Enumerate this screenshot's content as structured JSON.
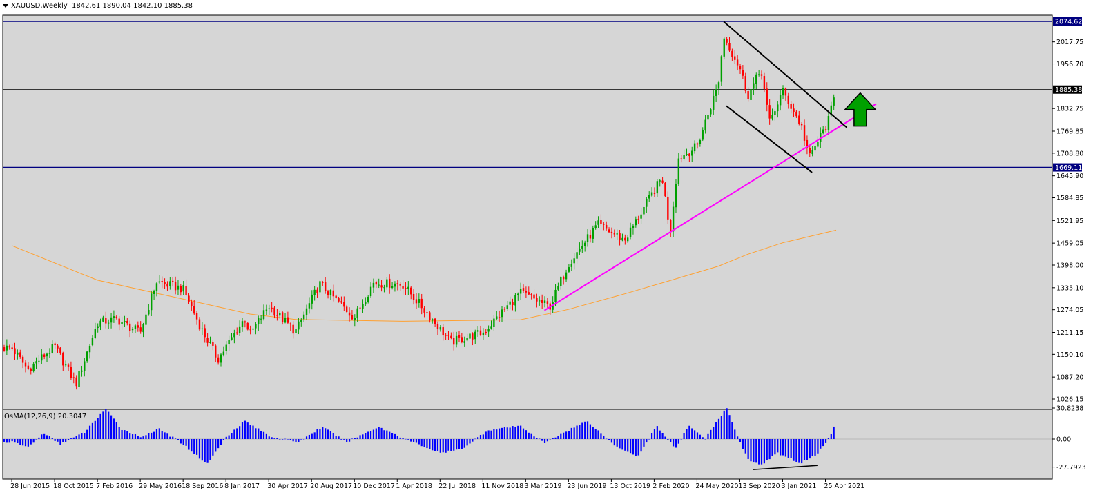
{
  "header": {
    "symbol": "XAUUSD,Weekly",
    "ohlc": "1842.61 1890.04 1842.10 1885.38"
  },
  "indicator": {
    "label": "OsMA(12,26,9) 20.3047",
    "ticks": [
      "30.8238",
      "0.00",
      "-27.7923"
    ]
  },
  "colors": {
    "background": "#ffffff",
    "plot": "#d6d6d6",
    "up": "#00a000",
    "down": "#ff0000",
    "ma": "#ffa030",
    "trend": "#ff00ff",
    "level": "#000080",
    "osma": "#0000ff",
    "arrow": "#00a000"
  },
  "chart_data": {
    "type": "candlestick",
    "symbol": "XAUUSD",
    "timeframe": "Weekly",
    "y_ticks": [
      "2017.75",
      "1956.70",
      "1832.75",
      "1769.85",
      "1708.80",
      "1645.90",
      "1584.85",
      "1521.95",
      "1459.05",
      "1398.00",
      "1335.10",
      "1274.05",
      "1211.15",
      "1150.10",
      "1087.20",
      "1026.15"
    ],
    "ylim": [
      1020,
      2100
    ],
    "x_ticks": [
      "28 Jun 2015",
      "18 Oct 2015",
      "7 Feb 2016",
      "29 May 2016",
      "18 Sep 2016",
      "8 Jan 2017",
      "30 Apr 2017",
      "20 Aug 2017",
      "10 Dec 2017",
      "1 Apr 2018",
      "22 Jul 2018",
      "11 Nov 2018",
      "3 Mar 2019",
      "23 Jun 2019",
      "13 Oct 2019",
      "2 Feb 2020",
      "24 May 2020",
      "13 Sep 2020",
      "3 Jan 2021",
      "25 Apr 2021"
    ],
    "price_labels": [
      {
        "value": 2074.62,
        "text": "2074.62",
        "style": "level"
      },
      {
        "value": 1885.38,
        "text": "1885.38",
        "style": "current"
      },
      {
        "value": 1669.11,
        "text": "1669.11",
        "style": "level"
      }
    ],
    "horizontal_levels": [
      2074.62,
      1885.38,
      1669.11
    ],
    "close_path": [
      {
        "date": "2015-06-28",
        "close": 1168
      },
      {
        "date": "2015-08-09",
        "close": 1108
      },
      {
        "date": "2015-10-18",
        "close": 1172
      },
      {
        "date": "2015-12-13",
        "close": 1068
      },
      {
        "date": "2016-02-07",
        "close": 1238
      },
      {
        "date": "2016-03-27",
        "close": 1248
      },
      {
        "date": "2016-05-29",
        "close": 1210
      },
      {
        "date": "2016-07-10",
        "close": 1352
      },
      {
        "date": "2016-09-18",
        "close": 1332
      },
      {
        "date": "2016-11-06",
        "close": 1218
      },
      {
        "date": "2016-12-18",
        "close": 1136
      },
      {
        "date": "2017-02-26",
        "close": 1250
      },
      {
        "date": "2017-03-12",
        "close": 1206
      },
      {
        "date": "2017-04-30",
        "close": 1285
      },
      {
        "date": "2017-07-09",
        "close": 1213
      },
      {
        "date": "2017-09-10",
        "close": 1346
      },
      {
        "date": "2017-12-10",
        "close": 1252
      },
      {
        "date": "2018-01-28",
        "close": 1348
      },
      {
        "date": "2018-04-15",
        "close": 1345
      },
      {
        "date": "2018-06-24",
        "close": 1258
      },
      {
        "date": "2018-08-19",
        "close": 1184
      },
      {
        "date": "2018-11-11",
        "close": 1210
      },
      {
        "date": "2019-02-17",
        "close": 1322
      },
      {
        "date": "2019-05-05",
        "close": 1282
      },
      {
        "date": "2019-06-23",
        "close": 1402
      },
      {
        "date": "2019-09-08",
        "close": 1510
      },
      {
        "date": "2019-11-17",
        "close": 1467
      },
      {
        "date": "2020-01-05",
        "close": 1555
      },
      {
        "date": "2020-02-23",
        "close": 1642
      },
      {
        "date": "2020-03-15",
        "close": 1488
      },
      {
        "date": "2020-04-05",
        "close": 1693
      },
      {
        "date": "2020-05-24",
        "close": 1728
      },
      {
        "date": "2020-07-19",
        "close": 1902
      },
      {
        "date": "2020-08-02",
        "close": 2034
      },
      {
        "date": "2020-09-13",
        "close": 1946
      },
      {
        "date": "2020-10-04",
        "close": 1868
      },
      {
        "date": "2020-11-08",
        "close": 1942
      },
      {
        "date": "2020-11-29",
        "close": 1792
      },
      {
        "date": "2021-01-03",
        "close": 1882
      },
      {
        "date": "2021-02-21",
        "close": 1785
      },
      {
        "date": "2021-03-14",
        "close": 1695
      },
      {
        "date": "2021-04-04",
        "close": 1740
      },
      {
        "date": "2021-05-02",
        "close": 1796
      },
      {
        "date": "2021-05-23",
        "close": 1885.38
      }
    ],
    "moving_average": [
      {
        "date": "2015-06-28",
        "value": 1452
      },
      {
        "date": "2016-02-07",
        "value": 1356
      },
      {
        "date": "2016-07-10",
        "value": 1320
      },
      {
        "date": "2016-11-06",
        "value": 1292
      },
      {
        "date": "2017-03-12",
        "value": 1262
      },
      {
        "date": "2017-07-09",
        "value": 1247
      },
      {
        "date": "2018-04-15",
        "value": 1242
      },
      {
        "date": "2019-02-17",
        "value": 1246
      },
      {
        "date": "2019-06-23",
        "value": 1275
      },
      {
        "date": "2019-11-17",
        "value": 1318
      },
      {
        "date": "2020-03-15",
        "value": 1355
      },
      {
        "date": "2020-07-19",
        "value": 1395
      },
      {
        "date": "2020-10-04",
        "value": 1428
      },
      {
        "date": "2021-01-03",
        "value": 1460
      },
      {
        "date": "2021-05-23",
        "value": 1495
      }
    ],
    "trendlines": [
      {
        "kind": "support",
        "color": "trend",
        "from": {
          "date": "2019-04-21",
          "value": 1272
        },
        "to": {
          "date": "2021-09-05",
          "value": 1846
        }
      },
      {
        "kind": "channel-upper",
        "color": "black",
        "from": {
          "date": "2020-08-02",
          "value": 2074
        },
        "to": {
          "date": "2021-06-20",
          "value": 1780
        }
      },
      {
        "kind": "channel-lower",
        "color": "black",
        "from": {
          "date": "2020-08-09",
          "value": 1840
        },
        "to": {
          "date": "2021-03-21",
          "value": 1655
        }
      }
    ],
    "annotations": [
      {
        "kind": "arrow-up",
        "date": "2021-07-25",
        "value": 1830
      }
    ],
    "osma": {
      "value": 20.3047,
      "ylim": [
        -30.5,
        33.5
      ],
      "profile": [
        {
          "date": "2015-06-28",
          "value": -3
        },
        {
          "date": "2015-08-09",
          "value": -8
        },
        {
          "date": "2015-09-20",
          "value": 6
        },
        {
          "date": "2015-11-01",
          "value": -5
        },
        {
          "date": "2016-01-03",
          "value": 6
        },
        {
          "date": "2016-02-28",
          "value": 30
        },
        {
          "date": "2016-04-10",
          "value": 10
        },
        {
          "date": "2016-05-29",
          "value": 2
        },
        {
          "date": "2016-07-17",
          "value": 10
        },
        {
          "date": "2016-09-18",
          "value": -5
        },
        {
          "date": "2016-11-20",
          "value": -25
        },
        {
          "date": "2017-01-08",
          "value": 2
        },
        {
          "date": "2017-02-26",
          "value": 18
        },
        {
          "date": "2017-05-07",
          "value": 2
        },
        {
          "date": "2017-07-16",
          "value": -3
        },
        {
          "date": "2017-09-17",
          "value": 12
        },
        {
          "date": "2017-11-19",
          "value": -3
        },
        {
          "date": "2018-02-11",
          "value": 12
        },
        {
          "date": "2018-04-29",
          "value": -1
        },
        {
          "date": "2018-07-22",
          "value": -14
        },
        {
          "date": "2018-09-16",
          "value": -10
        },
        {
          "date": "2018-11-25",
          "value": 9
        },
        {
          "date": "2019-02-17",
          "value": 13
        },
        {
          "date": "2019-04-21",
          "value": -4
        },
        {
          "date": "2019-06-23",
          "value": 9
        },
        {
          "date": "2019-08-11",
          "value": 18
        },
        {
          "date": "2019-10-20",
          "value": -6
        },
        {
          "date": "2019-12-22",
          "value": -17
        },
        {
          "date": "2020-02-09",
          "value": 13
        },
        {
          "date": "2020-03-29",
          "value": -10
        },
        {
          "date": "2020-05-03",
          "value": 14
        },
        {
          "date": "2020-06-14",
          "value": 0
        },
        {
          "date": "2020-08-09",
          "value": 31
        },
        {
          "date": "2020-09-06",
          "value": 4
        },
        {
          "date": "2020-10-04",
          "value": -20
        },
        {
          "date": "2020-11-08",
          "value": -26
        },
        {
          "date": "2020-12-20",
          "value": -14
        },
        {
          "date": "2021-02-21",
          "value": -24
        },
        {
          "date": "2021-04-04",
          "value": -14
        },
        {
          "date": "2021-05-09",
          "value": 3
        },
        {
          "date": "2021-05-23",
          "value": 20.3047
        }
      ]
    }
  }
}
